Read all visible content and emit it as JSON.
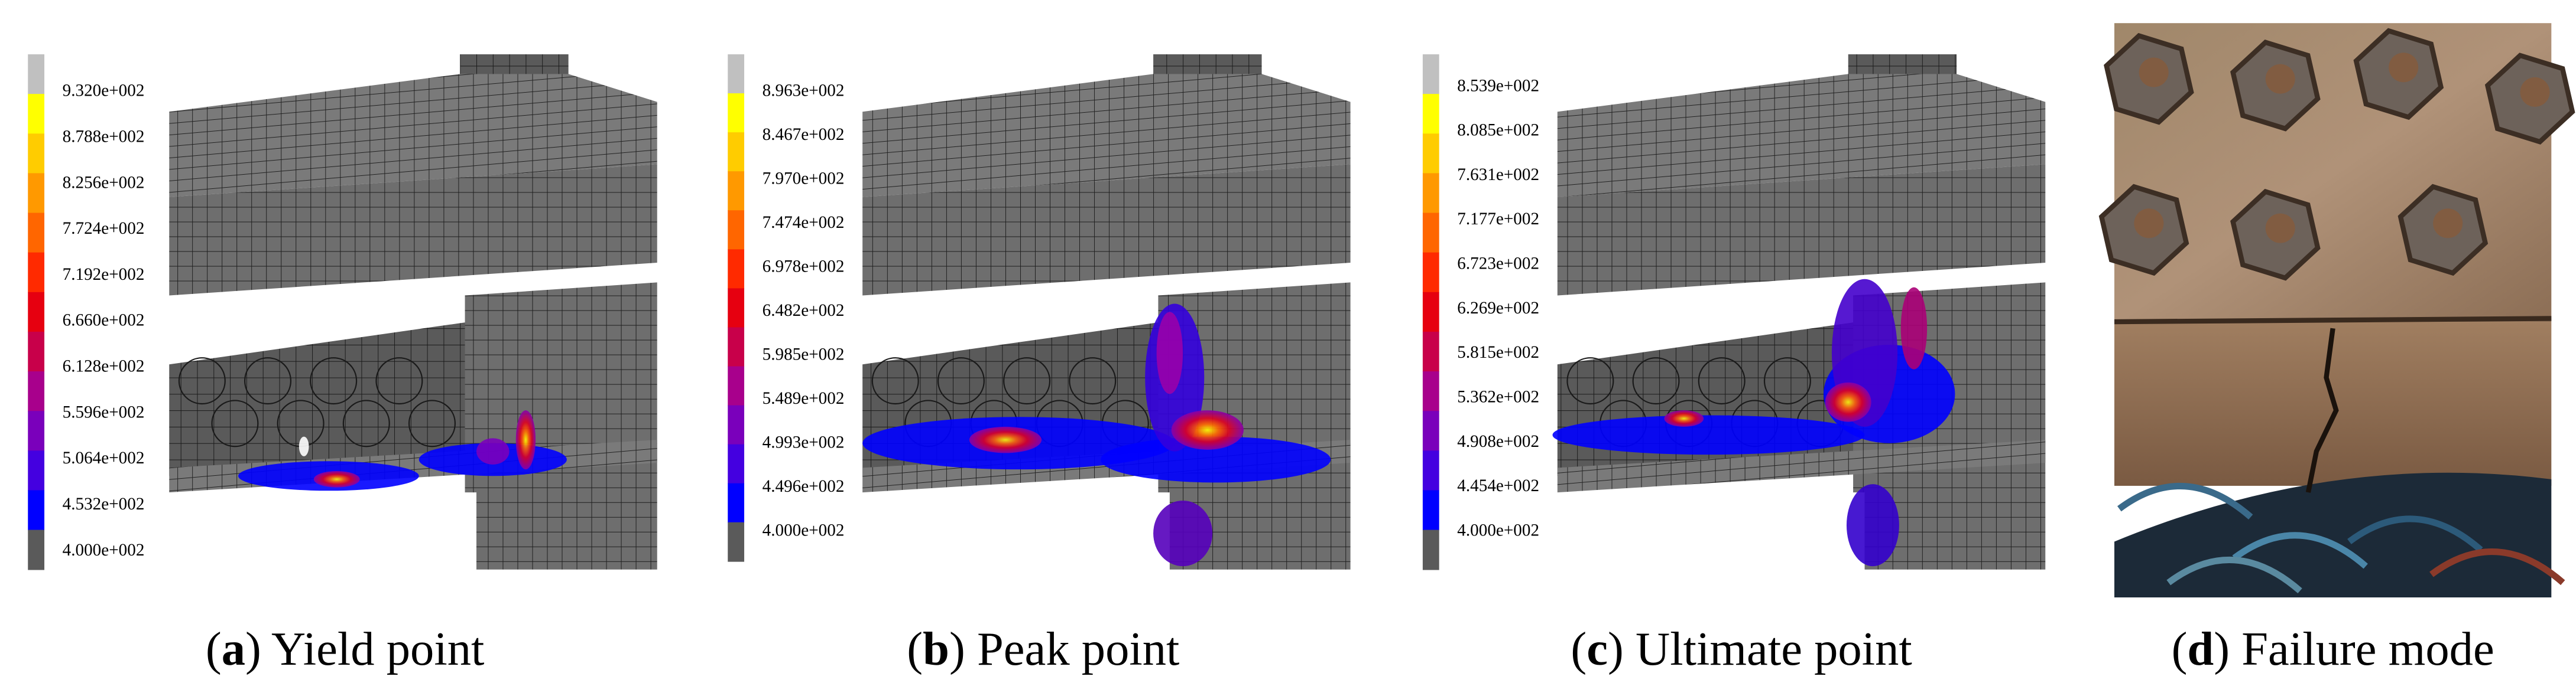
{
  "panels": [
    {
      "caption": [
        "(",
        "a",
        ") Yield point"
      ],
      "legend": [
        "9.320e+002",
        "8.788e+002",
        "8.256e+002",
        "7.724e+002",
        "7.192e+002",
        "6.660e+002",
        "6.128e+002",
        "5.596e+002",
        "5.064e+002",
        "4.532e+002",
        "4.000e+002"
      ]
    },
    {
      "caption": [
        "(",
        "b",
        ") Peak point"
      ],
      "legend": [
        "8.963e+002",
        "8.467e+002",
        "7.970e+002",
        "7.474e+002",
        "6.978e+002",
        "6.482e+002",
        "5.985e+002",
        "5.489e+002",
        "4.993e+002",
        "4.496e+002",
        "4.000e+002"
      ]
    },
    {
      "caption": [
        "(",
        "c",
        ") Ultimate point"
      ],
      "legend": [
        "8.539e+002",
        "8.085e+002",
        "7.631e+002",
        "7.177e+002",
        "6.723e+002",
        "6.269e+002",
        "5.815e+002",
        "5.362e+002",
        "4.908e+002",
        "4.454e+002",
        "4.000e+002"
      ]
    },
    {
      "caption": [
        "(",
        "d",
        ") Failure mode"
      ]
    }
  ]
}
